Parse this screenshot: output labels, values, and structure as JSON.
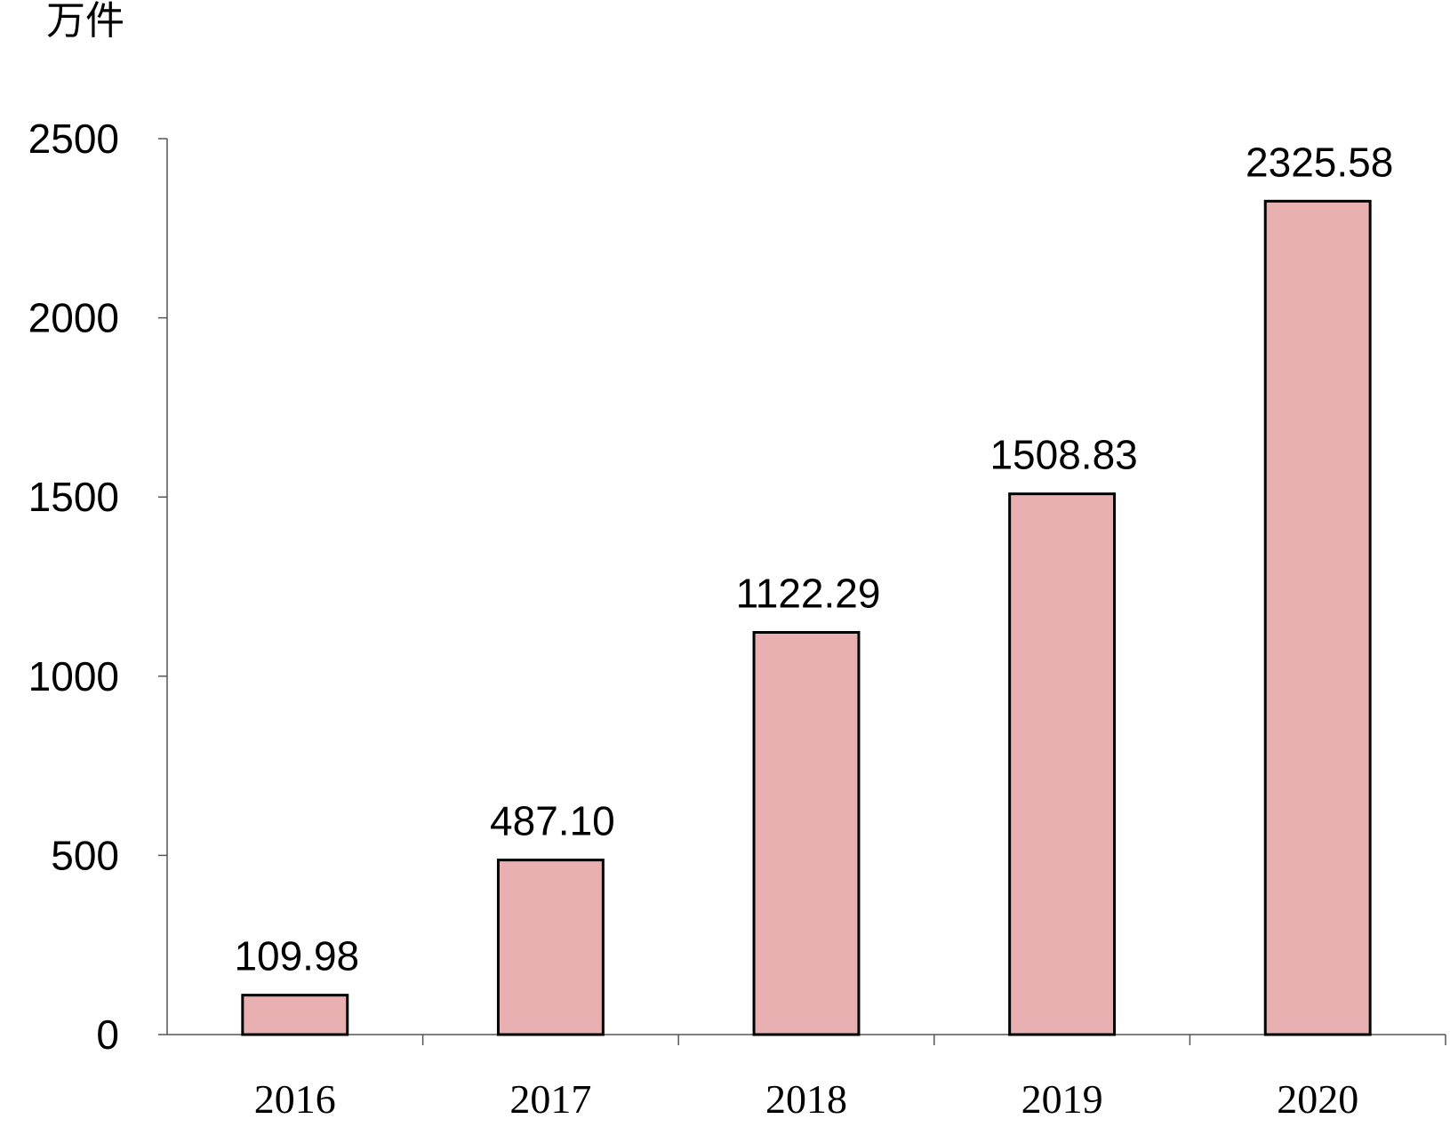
{
  "chart_data": {
    "type": "bar",
    "ylabel": "万件",
    "categories": [
      "2016",
      "2017",
      "2018",
      "2019",
      "2020"
    ],
    "values": [
      109.98,
      487.1,
      1122.29,
      1508.83,
      2325.58
    ],
    "value_labels": [
      "109.98",
      "487.10",
      "1122.29",
      "1508.83",
      "2325.58"
    ],
    "yticks": [
      0,
      500,
      1000,
      1500,
      2000,
      2500
    ],
    "ylim": [
      0,
      2500
    ],
    "grid": false,
    "legend": "none",
    "bar_color": "#e8b0b0",
    "bar_edge_color": "#000000"
  }
}
